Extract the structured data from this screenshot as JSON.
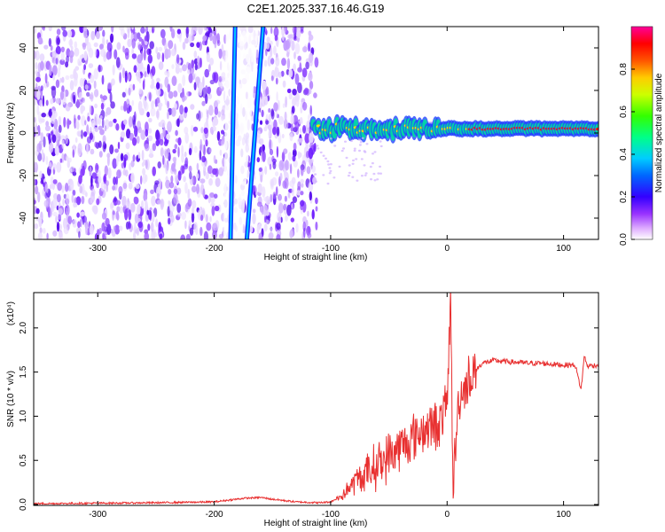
{
  "chart_data": [
    {
      "type": "heatmap",
      "title": "C2E1.2025.337.16.46.G19",
      "xlabel": "Height of straight line (km)",
      "ylabel": "Frequency (Hz)",
      "xlim": [
        -355,
        130
      ],
      "ylim": [
        -50,
        50
      ],
      "xticks": [
        -300,
        -200,
        -100,
        0,
        100
      ],
      "xtick_labels": [
        "-300",
        "-200",
        "-100",
        "0",
        "100"
      ],
      "yticks": [
        -40,
        -20,
        0,
        20,
        40
      ],
      "ytick_labels": [
        "-40",
        "-20",
        "0",
        "20",
        "40"
      ],
      "colorbar": {
        "label": "Normalized spectral amplitude",
        "range": [
          0,
          1
        ],
        "ticks": [
          0.0,
          0.2,
          0.4,
          0.6,
          0.8
        ],
        "tick_labels": [
          "0.0",
          "0.2",
          "0.4",
          "0.6",
          "0.8"
        ],
        "colors": [
          "#ffffff",
          "#cc66ff",
          "#5500ff",
          "#0000ff",
          "#00bbff",
          "#00ffaa",
          "#55ff00",
          "#ccff00",
          "#ffcc00",
          "#ff5500",
          "#ff0000",
          "#ff0099"
        ]
      },
      "features": {
        "noise_region_x": [
          -355,
          -112
        ],
        "line1": {
          "x_at_top": -182,
          "x_at_bottom": -186
        },
        "line2": {
          "x_at_top": -158,
          "x_at_bottom": -172
        },
        "signal_band": {
          "x": [
            -115,
            130
          ],
          "center_hz": 2.0
        }
      }
    },
    {
      "type": "line",
      "xlabel": "Height of straight line (km)",
      "ylabel": "SNR (10 * v/v)",
      "scale_label": "(x10⁴)",
      "xlim": [
        -355,
        130
      ],
      "ylim": [
        -0.01,
        2.4
      ],
      "xticks": [
        -300,
        -200,
        -100,
        0,
        100
      ],
      "xtick_labels": [
        "-300",
        "-200",
        "-100",
        "0",
        "100"
      ],
      "yticks": [
        0.0,
        0.5,
        1.0,
        1.5,
        2.0
      ],
      "ytick_labels": [
        "0.0",
        "0.5",
        "1.0",
        "1.5",
        "2.0"
      ],
      "color": "#e83030",
      "series": [
        {
          "name": "SNR",
          "x": [
            -355,
            -300,
            -250,
            -200,
            -175,
            -160,
            -150,
            -130,
            -110,
            -100,
            -90,
            -80,
            -70,
            -60,
            -50,
            -40,
            -30,
            -20,
            -10,
            -5,
            0,
            3,
            5,
            10,
            20,
            30,
            40,
            50,
            60,
            70,
            80,
            90,
            100,
            110,
            115,
            118,
            120,
            130
          ],
          "y": [
            0.01,
            0.015,
            0.02,
            0.03,
            0.07,
            0.08,
            0.06,
            0.03,
            0.02,
            0.03,
            0.1,
            0.25,
            0.35,
            0.45,
            0.55,
            0.65,
            0.75,
            0.85,
            0.9,
            0.95,
            1.15,
            2.35,
            0.2,
            1.2,
            1.45,
            1.6,
            1.63,
            1.62,
            1.61,
            1.6,
            1.6,
            1.59,
            1.58,
            1.58,
            1.3,
            1.7,
            1.57,
            1.58
          ]
        }
      ]
    }
  ]
}
